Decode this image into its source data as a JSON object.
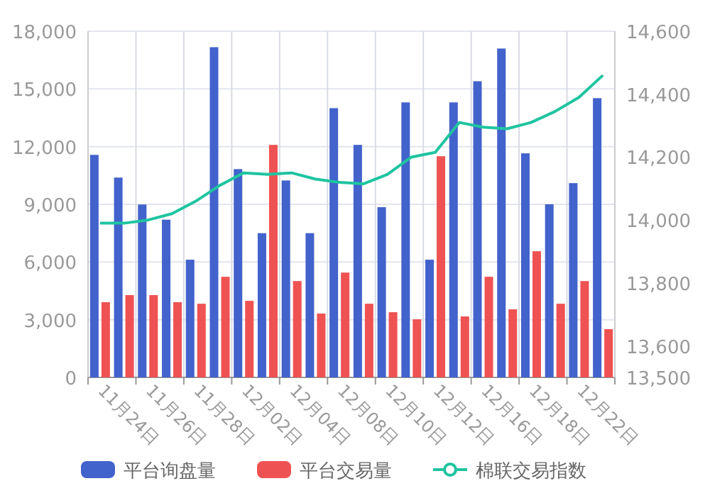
{
  "chart_data": {
    "type": "bar",
    "categories": [
      "11月24日",
      null,
      "11月26日",
      null,
      "11月28日",
      null,
      "12月02日",
      null,
      "12月04日",
      null,
      "12月08日",
      null,
      "12月10日",
      null,
      "12月12日",
      null,
      "12月16日",
      null,
      "12月18日",
      null,
      "12月22日",
      null
    ],
    "series": [
      {
        "name": "平台询盘量",
        "color": "#4262cc",
        "values": [
          11570,
          10390,
          8990,
          8200,
          6120,
          17170,
          10830,
          7500,
          10240,
          7500,
          14000,
          12090,
          8850,
          14300,
          6120,
          14300,
          15400,
          17100,
          11650,
          9000,
          10100,
          14520
        ]
      },
      {
        "name": "平台交易量",
        "color": "#ef5252",
        "values": [
          3910,
          4280,
          4280,
          3910,
          3830,
          5230,
          3980,
          12090,
          5010,
          3320,
          5450,
          3830,
          3390,
          3020,
          11500,
          3170,
          5230,
          3540,
          6560,
          3830,
          5010,
          2510
        ]
      },
      {
        "name": "棉联交易指数",
        "color": "#1ec4a0",
        "type": "line",
        "axis": "y2",
        "values": [
          13990,
          13990,
          14000,
          14020,
          14060,
          14110,
          14150,
          14145,
          14150,
          14130,
          14120,
          14115,
          14145,
          14200,
          14215,
          14310,
          14295,
          14290,
          14310,
          14345,
          14390,
          14460
        ]
      }
    ],
    "ylim": [
      0,
      18000
    ],
    "yticks": [
      0,
      {
        "value": 3000,
        "label": "3,000"
      },
      {
        "value": 6000,
        "label": "6,000"
      },
      {
        "value": 9000,
        "label": "9,000"
      },
      {
        "value": 12000,
        "label": "12,000"
      },
      {
        "value": 15000,
        "label": "15,000"
      },
      {
        "value": 18000,
        "label": "18,000"
      }
    ],
    "y2lim": [
      13500,
      14600
    ],
    "y2ticks": [
      {
        "value": 13500,
        "label": "13,500"
      },
      {
        "value": 13600,
        "label": "13,600"
      },
      {
        "value": 13800,
        "label": "13,800"
      },
      {
        "value": 14000,
        "label": "14,000"
      },
      {
        "value": 14200,
        "label": "14,200"
      },
      {
        "value": 14400,
        "label": "14,400"
      },
      {
        "value": 14600,
        "label": "14,600"
      }
    ],
    "grid": true,
    "legend": "bottom"
  }
}
